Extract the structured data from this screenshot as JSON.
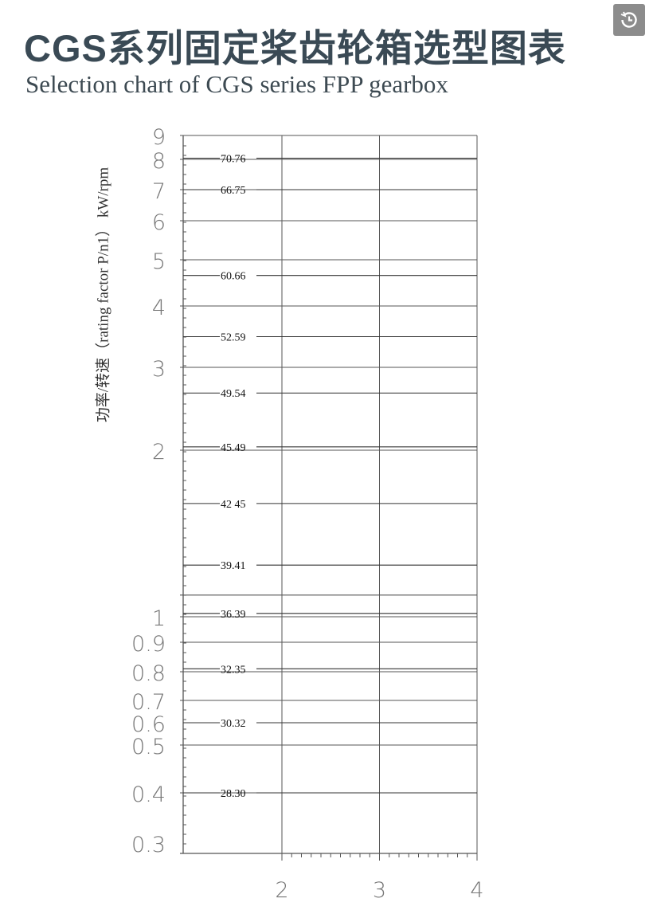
{
  "header": {
    "title": "CGS系列固定桨齿轮箱选型图表",
    "subtitle": "Selection chart of CGS series FPP gearbox",
    "badge_icon": "history-clock-icon"
  },
  "chart_data": {
    "type": "line",
    "title": "CGS系列固定桨齿轮箱选型图表",
    "subtitle": "Selection chart of CGS series FPP gearbox",
    "ylabel": "功率/转速（rating factor P/n1） kW/rpm",
    "xlabel": "",
    "y_scale": "nonlinear (compressed logarithmic)",
    "ylim": [
      0.29,
      9
    ],
    "xlim": [
      1,
      4
    ],
    "y_ticks": [
      9,
      8,
      7,
      6,
      5,
      4,
      3,
      2,
      1,
      0.9,
      0.8,
      0.7,
      0.6,
      0.5,
      0.4,
      0.3
    ],
    "y_tick_labels": [
      "9",
      "8",
      "7",
      "6",
      "5",
      "4",
      "3",
      "2",
      "1",
      "0.9",
      "0.8",
      "0.7",
      "0.6",
      "0.5",
      "0.4",
      "0.3"
    ],
    "x_ticks": [
      2,
      3,
      4
    ],
    "x_tick_labels": [
      "2",
      "3",
      "4"
    ],
    "grid": true,
    "gridlines_y": [
      9,
      8,
      7,
      6,
      5,
      4,
      3,
      2,
      1.13,
      1,
      0.9,
      0.8,
      0.7,
      0.5,
      0.4
    ],
    "reference_lines": [
      {
        "label": "70.76",
        "y": 8.05
      },
      {
        "label": "66.75",
        "y": 7
      },
      {
        "label": "60.66",
        "y": 4.66
      },
      {
        "label": "52.59",
        "y": 3.5
      },
      {
        "label": "49.54",
        "y": 2.69
      },
      {
        "label": "45.49",
        "y": 2.04
      },
      {
        "label": "42 45",
        "y": 1.68
      },
      {
        "label": "39.41",
        "y": 1.31
      },
      {
        "label": "36.39",
        "y": 1.02
      },
      {
        "label": "32.35",
        "y": 0.81
      },
      {
        "label": "30.32",
        "y": 0.6
      },
      {
        "label": "28.30",
        "y": 0.4
      }
    ],
    "line_color": "#333333"
  }
}
